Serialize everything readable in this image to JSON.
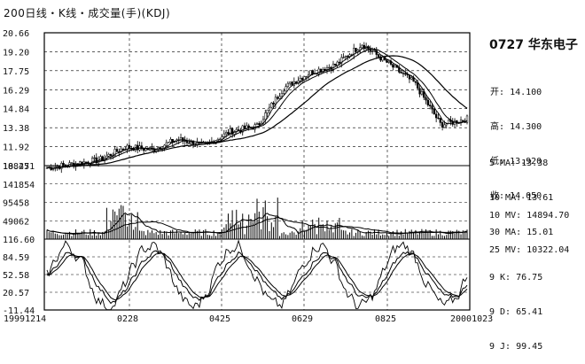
{
  "header": {
    "title": "200日线・K线・成交量(手)(KDJ)"
  },
  "stock": {
    "code_name": "0727 华东电子"
  },
  "ohlc": [
    {
      "label": "开:",
      "value": "14.100"
    },
    {
      "label": "高:",
      "value": "14.300"
    },
    {
      "label": "低:",
      "value": "13.920"
    },
    {
      "label": "收:",
      "value": "14.050"
    }
  ],
  "ma": [
    {
      "label": "5 MA:",
      "value": "13.38"
    },
    {
      "label": "10 MA:",
      "value": "13.61"
    },
    {
      "label": "30 MA:",
      "value": "15.01"
    }
  ],
  "mv": [
    {
      "label": "10 MV:",
      "value": "14894.70"
    },
    {
      "label": "25 MV:",
      "value": "10322.04"
    }
  ],
  "kdj": [
    {
      "label": "9 K:",
      "value": "76.75"
    },
    {
      "label": "9 D:",
      "value": "65.41"
    },
    {
      "label": "9 J:",
      "value": "99.45"
    }
  ],
  "chart_data": [
    {
      "type": "candlestick",
      "panel": "price",
      "ylim": [
        10.47,
        20.66
      ],
      "yticks": [
        "20.66",
        "19.20",
        "17.75",
        "16.29",
        "14.84",
        "13.38",
        "11.92",
        "10.47"
      ],
      "grid": true,
      "close_approx": [
        [
          "19991214",
          10.3
        ],
        [
          "20000110",
          10.6
        ],
        [
          "20000201",
          10.9
        ],
        [
          "20000228",
          11.9
        ],
        [
          "20000320",
          11.7
        ],
        [
          "20000410",
          12.5
        ],
        [
          "20000425",
          12.0
        ],
        [
          "20000515",
          13.1
        ],
        [
          "20000601",
          13.5
        ],
        [
          "20000629",
          16.4
        ],
        [
          "20000715",
          17.6
        ],
        [
          "20000801",
          18.2
        ],
        [
          "20000825",
          19.8
        ],
        [
          "20000905",
          18.3
        ],
        [
          "20000920",
          16.8
        ],
        [
          "20001001",
          13.6
        ],
        [
          "20001023",
          14.05
        ]
      ]
    },
    {
      "type": "bar",
      "panel": "volume",
      "ylim": [
        116.6,
        188251
      ],
      "yticks": [
        "188251",
        "141854",
        "95458",
        "49062",
        "116.60"
      ],
      "grid": true
    },
    {
      "type": "line",
      "panel": "kdj",
      "ylim": [
        -11.44,
        116.6
      ],
      "yticks": [
        "116.60",
        "84.59",
        "52.58",
        "20.57",
        "-11.44"
      ],
      "series": [
        {
          "name": "K"
        },
        {
          "name": "D"
        },
        {
          "name": "J"
        }
      ],
      "grid": true
    }
  ],
  "xaxis": {
    "ticks": [
      "19991214",
      "0228",
      "0425",
      "0629",
      "0825",
      "20001023"
    ]
  }
}
